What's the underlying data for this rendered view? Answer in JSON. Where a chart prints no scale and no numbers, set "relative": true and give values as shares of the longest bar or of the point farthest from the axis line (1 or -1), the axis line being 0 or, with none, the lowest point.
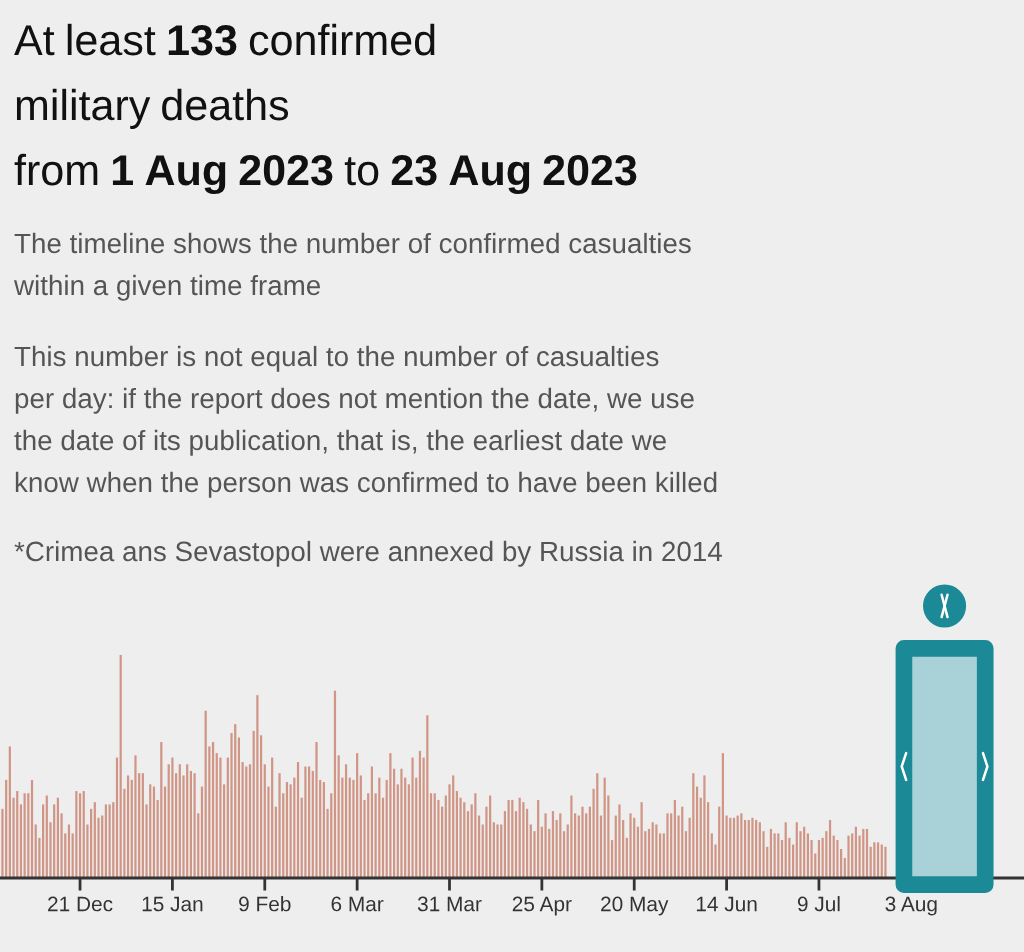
{
  "chart_data": {
    "type": "bar",
    "relative": true,
    "tick_labels": "x",
    "title": "At least 133 confirmed\nmilitary deaths\nfrom 1 Aug 2023 to 23 Aug 2023",
    "subtitle": "The timeline shows the number of confirmed casualties\nwithin a given time frame",
    "annotations": [
      "This number is not equal to the number of casualties\nper day: if the report does not mention the date, we use\nthe date of its publication, that is, the earliest date we\nknow when the person was confirmed to have been killed",
      "*Crimea ans Sevastopol were annexed by Russia in 2014"
    ],
    "x": [
      "2022-11-30",
      "2022-12-01",
      "2022-12-02",
      "2022-12-03",
      "2022-12-04",
      "2022-12-05",
      "2022-12-06",
      "2022-12-07",
      "2022-12-08",
      "2022-12-09",
      "2022-12-10",
      "2022-12-11",
      "2022-12-12",
      "2022-12-13",
      "2022-12-14",
      "2022-12-15",
      "2022-12-16",
      "2022-12-17",
      "2022-12-18",
      "2022-12-19",
      "2022-12-20",
      "2022-12-21",
      "2022-12-22",
      "2022-12-23",
      "2022-12-24",
      "2022-12-25",
      "2022-12-26",
      "2022-12-27",
      "2022-12-28",
      "2022-12-29",
      "2022-12-30",
      "2022-12-31",
      "2023-01-01",
      "2023-01-02",
      "2023-01-03",
      "2023-01-04",
      "2023-01-05",
      "2023-01-06",
      "2023-01-07",
      "2023-01-08",
      "2023-01-09",
      "2023-01-10",
      "2023-01-11",
      "2023-01-12",
      "2023-01-13",
      "2023-01-14",
      "2023-01-15",
      "2023-01-16",
      "2023-01-17",
      "2023-01-18",
      "2023-01-19",
      "2023-01-20",
      "2023-01-21",
      "2023-01-22",
      "2023-01-23",
      "2023-01-24",
      "2023-01-25",
      "2023-01-26",
      "2023-01-27",
      "2023-01-28",
      "2023-01-29",
      "2023-01-30",
      "2023-01-31",
      "2023-02-01",
      "2023-02-02",
      "2023-02-03",
      "2023-02-04",
      "2023-02-05",
      "2023-02-06",
      "2023-02-07",
      "2023-02-08",
      "2023-02-09",
      "2023-02-10",
      "2023-02-11",
      "2023-02-12",
      "2023-02-13",
      "2023-02-14",
      "2023-02-15",
      "2023-02-16",
      "2023-02-17",
      "2023-02-18",
      "2023-02-19",
      "2023-02-20",
      "2023-02-21",
      "2023-02-22",
      "2023-02-23",
      "2023-02-24",
      "2023-02-25",
      "2023-02-26",
      "2023-02-27",
      "2023-02-28",
      "2023-03-01",
      "2023-03-02",
      "2023-03-03",
      "2023-03-04",
      "2023-03-05",
      "2023-03-06",
      "2023-03-07",
      "2023-03-08",
      "2023-03-09",
      "2023-03-10",
      "2023-03-11",
      "2023-03-12",
      "2023-03-13",
      "2023-03-14",
      "2023-03-15",
      "2023-03-16",
      "2023-03-17",
      "2023-03-18",
      "2023-03-19",
      "2023-03-20",
      "2023-03-21",
      "2023-03-22",
      "2023-03-23",
      "2023-03-24",
      "2023-03-25",
      "2023-03-26",
      "2023-03-27",
      "2023-03-28",
      "2023-03-29",
      "2023-03-30",
      "2023-03-31",
      "2023-04-01",
      "2023-04-02",
      "2023-04-03",
      "2023-04-04",
      "2023-04-05",
      "2023-04-06",
      "2023-04-07",
      "2023-04-08",
      "2023-04-09",
      "2023-04-10",
      "2023-04-11",
      "2023-04-12",
      "2023-04-13",
      "2023-04-14",
      "2023-04-15",
      "2023-04-16",
      "2023-04-17",
      "2023-04-18",
      "2023-04-19",
      "2023-04-20",
      "2023-04-21",
      "2023-04-22",
      "2023-04-23",
      "2023-04-24",
      "2023-04-25",
      "2023-04-26",
      "2023-04-27",
      "2023-04-28",
      "2023-04-29",
      "2023-04-30",
      "2023-05-01",
      "2023-05-02",
      "2023-05-03",
      "2023-05-04",
      "2023-05-05",
      "2023-05-06",
      "2023-05-07",
      "2023-05-08",
      "2023-05-09",
      "2023-05-10",
      "2023-05-11",
      "2023-05-12",
      "2023-05-13",
      "2023-05-14",
      "2023-05-15",
      "2023-05-16",
      "2023-05-17",
      "2023-05-18",
      "2023-05-19",
      "2023-05-20",
      "2023-05-21",
      "2023-05-22",
      "2023-05-23",
      "2023-05-24",
      "2023-05-25",
      "2023-05-26",
      "2023-05-27",
      "2023-05-28",
      "2023-05-29",
      "2023-05-30",
      "2023-05-31",
      "2023-06-01",
      "2023-06-02",
      "2023-06-03",
      "2023-06-04",
      "2023-06-05",
      "2023-06-06",
      "2023-06-07",
      "2023-06-08",
      "2023-06-09",
      "2023-06-10",
      "2023-06-11",
      "2023-06-12",
      "2023-06-13",
      "2023-06-14",
      "2023-06-15",
      "2023-06-16",
      "2023-06-17",
      "2023-06-18",
      "2023-06-19",
      "2023-06-20",
      "2023-06-21",
      "2023-06-22",
      "2023-06-23",
      "2023-06-24",
      "2023-06-25",
      "2023-06-26",
      "2023-06-27",
      "2023-06-28",
      "2023-06-29",
      "2023-06-30",
      "2023-07-01",
      "2023-07-02",
      "2023-07-03",
      "2023-07-04",
      "2023-07-05",
      "2023-07-06",
      "2023-07-07",
      "2023-07-08",
      "2023-07-09",
      "2023-07-10",
      "2023-07-11",
      "2023-07-12",
      "2023-07-13",
      "2023-07-14",
      "2023-07-15",
      "2023-07-16",
      "2023-07-17",
      "2023-07-18",
      "2023-07-19",
      "2023-07-20",
      "2023-07-21",
      "2023-07-22",
      "2023-07-23",
      "2023-07-24",
      "2023-07-25",
      "2023-07-26",
      "2023-07-27"
    ],
    "values": [
      0.31,
      0.44,
      0.59,
      0.36,
      0.39,
      0.33,
      0.38,
      0.38,
      0.44,
      0.24,
      0.18,
      0.33,
      0.37,
      0.25,
      0.33,
      0.36,
      0.29,
      0.2,
      0.24,
      0.2,
      0.39,
      0.38,
      0.39,
      0.24,
      0.31,
      0.34,
      0.27,
      0.28,
      0.33,
      0.33,
      0.34,
      0.54,
      1.0,
      0.4,
      0.46,
      0.44,
      0.55,
      0.47,
      0.47,
      0.33,
      0.42,
      0.41,
      0.35,
      0.61,
      0.41,
      0.51,
      0.54,
      0.47,
      0.51,
      0.46,
      0.51,
      0.48,
      0.47,
      0.29,
      0.41,
      0.75,
      0.59,
      0.61,
      0.56,
      0.54,
      0.42,
      0.54,
      0.65,
      0.69,
      0.63,
      0.52,
      0.5,
      0.51,
      0.66,
      0.82,
      0.64,
      0.51,
      0.41,
      0.54,
      0.32,
      0.47,
      0.38,
      0.43,
      0.42,
      0.45,
      0.52,
      0.36,
      0.5,
      0.5,
      0.48,
      0.61,
      0.44,
      0.43,
      0.31,
      0.38,
      0.84,
      0.55,
      0.45,
      0.51,
      0.45,
      0.44,
      0.56,
      0.46,
      0.35,
      0.38,
      0.5,
      0.38,
      0.45,
      0.36,
      0.44,
      0.56,
      0.49,
      0.42,
      0.49,
      0.45,
      0.42,
      0.54,
      0.45,
      0.57,
      0.54,
      0.73,
      0.38,
      0.38,
      0.35,
      0.32,
      0.37,
      0.42,
      0.46,
      0.39,
      0.36,
      0.34,
      0.3,
      0.33,
      0.38,
      0.28,
      0.24,
      0.32,
      0.37,
      0.25,
      0.24,
      0.24,
      0.3,
      0.35,
      0.35,
      0.3,
      0.36,
      0.34,
      0.31,
      0.24,
      0.21,
      0.35,
      0.23,
      0.29,
      0.22,
      0.3,
      0.26,
      0.29,
      0.21,
      0.24,
      0.37,
      0.29,
      0.28,
      0.32,
      0.29,
      0.32,
      0.4,
      0.47,
      0.28,
      0.45,
      0.37,
      0.17,
      0.28,
      0.33,
      0.26,
      0.18,
      0.29,
      0.27,
      0.23,
      0.34,
      0.21,
      0.22,
      0.25,
      0.24,
      0.2,
      0.2,
      0.29,
      0.29,
      0.35,
      0.28,
      0.32,
      0.21,
      0.27,
      0.47,
      0.41,
      0.36,
      0.46,
      0.34,
      0.2,
      0.15,
      0.32,
      0.56,
      0.28,
      0.27,
      0.27,
      0.28,
      0.29,
      0.26,
      0.26,
      0.27,
      0.26,
      0.25,
      0.21,
      0.14,
      0.22,
      0.2,
      0.2,
      0.17,
      0.25,
      0.18,
      0.15,
      0.25,
      0.21,
      0.23,
      0.2,
      0.17,
      0.11,
      0.17,
      0.18,
      0.21,
      0.26,
      0.19,
      0.17,
      0.13,
      0.09,
      0.19,
      0.2,
      0.23,
      0.19,
      0.22,
      0.22,
      0.14,
      0.16,
      0.16,
      0.15,
      0.14
    ],
    "color": "#d09585",
    "xlim": [
      "2022-11-29T08:00",
      "2023-09-02T12:00"
    ],
    "xticks": [
      {
        "value": "2022-12-21",
        "label": "21 Dec"
      },
      {
        "value": "2023-01-15",
        "label": "15 Jan"
      },
      {
        "value": "2023-02-09",
        "label": "9 Feb"
      },
      {
        "value": "2023-03-06",
        "label": "6 Mar"
      },
      {
        "value": "2023-03-31",
        "label": "31 Mar"
      },
      {
        "value": "2023-04-25",
        "label": "25 Apr"
      },
      {
        "value": "2023-05-20",
        "label": "20 May"
      },
      {
        "value": "2023-06-14",
        "label": "14 Jun"
      },
      {
        "value": "2023-07-09",
        "label": "9 Jul"
      },
      {
        "value": "2023-08-03",
        "label": "3 Aug"
      }
    ],
    "bands": [
      {
        "axis": "x",
        "from": "2023-08-01",
        "to": "2023-08-23",
        "label": null,
        "color": "#1b8a96"
      }
    ]
  }
}
